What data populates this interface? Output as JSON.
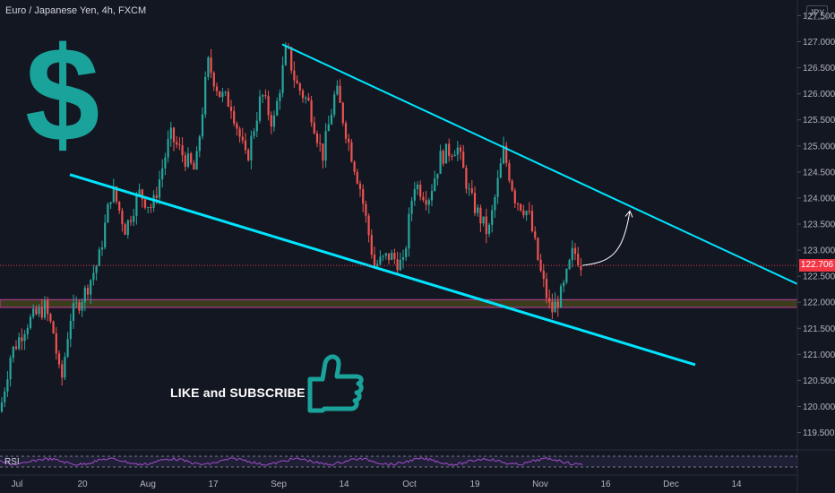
{
  "header": {
    "title": "Euro / Japanese Yen, 4h, FXCM",
    "currency": "JPY"
  },
  "overlay": {
    "dollar_symbol": "$",
    "cta_text": "LIKE and SUBSCRIBE",
    "thumb_icon": "thumbs-up-icon"
  },
  "rsi_panel": {
    "label": "RSI"
  },
  "colors": {
    "background": "#131722",
    "bull": "#26a69a",
    "bear": "#ef5350",
    "trendline": "#00e5ff",
    "zone": "#5c5c1a",
    "zone_border": "#c13aa6",
    "price_line": "#f23645",
    "accent": "#1aa39a"
  },
  "chart_data": {
    "type": "candlestick",
    "symbol": "Euro / Japanese Yen",
    "interval": "4h",
    "source": "FXCM",
    "yticks": [
      119.5,
      120.0,
      120.5,
      121.0,
      121.5,
      122.0,
      122.5,
      123.0,
      123.5,
      124.0,
      124.5,
      125.0,
      125.5,
      126.0,
      126.5,
      127.0,
      127.5
    ],
    "ylim": [
      119.2,
      127.8
    ],
    "last_price": "122.706",
    "xticks": [
      "Jul",
      "20",
      "Aug",
      "17",
      "Sep",
      "14",
      "Oct",
      "19",
      "Nov",
      "16",
      "Dec",
      "14"
    ],
    "support_zone": [
      121.9,
      122.05
    ],
    "upper_trendline": [
      [
        126.95,
        0.0
      ],
      [
        122.35,
        1.0
      ]
    ],
    "lower_trendline": [
      [
        124.45,
        0.0
      ],
      [
        120.8,
        1.0
      ]
    ],
    "projection": "upward arrow from last price toward upper trendline",
    "price_path": [
      [
        0,
        119.9
      ],
      [
        12,
        121.0
      ],
      [
        30,
        121.6
      ],
      [
        50,
        121.9
      ],
      [
        60,
        121.4
      ],
      [
        68,
        120.4
      ],
      [
        78,
        121.7
      ],
      [
        95,
        122.2
      ],
      [
        110,
        122.8
      ],
      [
        125,
        124.2
      ],
      [
        140,
        123.4
      ],
      [
        155,
        124.1
      ],
      [
        170,
        123.8
      ],
      [
        190,
        125.2
      ],
      [
        205,
        124.8
      ],
      [
        218,
        124.5
      ],
      [
        232,
        126.6
      ],
      [
        245,
        126.0
      ],
      [
        258,
        125.8
      ],
      [
        275,
        124.7
      ],
      [
        292,
        126.0
      ],
      [
        305,
        125.4
      ],
      [
        320,
        126.9
      ],
      [
        330,
        126.2
      ],
      [
        345,
        125.8
      ],
      [
        360,
        124.8
      ],
      [
        375,
        126.1
      ],
      [
        390,
        125.0
      ],
      [
        402,
        124.2
      ],
      [
        418,
        122.7
      ],
      [
        435,
        122.9
      ],
      [
        450,
        122.7
      ],
      [
        462,
        124.3
      ],
      [
        478,
        124.0
      ],
      [
        492,
        124.8
      ],
      [
        510,
        125.0
      ],
      [
        525,
        124.0
      ],
      [
        545,
        123.3
      ],
      [
        562,
        124.9
      ],
      [
        575,
        124.0
      ],
      [
        590,
        123.7
      ],
      [
        603,
        122.6
      ],
      [
        615,
        121.8
      ],
      [
        628,
        122.2
      ],
      [
        640,
        123.0
      ],
      [
        650,
        122.7
      ]
    ]
  }
}
